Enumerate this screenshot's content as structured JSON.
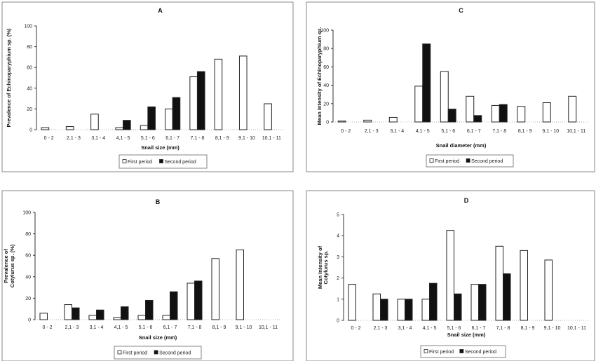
{
  "chart_data": [
    {
      "type": "bar",
      "title": "A",
      "xlabel": "Snail size (mm)",
      "ylabel": [
        "Prevalence of Echinoparyphium sp. (%)"
      ],
      "ylim": [
        0,
        100
      ],
      "yticks": [
        0,
        20,
        40,
        60,
        80,
        100
      ],
      "grid": false,
      "legend": "bottom",
      "categories": [
        "0 - 2",
        "2,1 - 3",
        "3,1 - 4",
        "4,1 - 5",
        "5,1 - 6",
        "6,1 - 7",
        "7,1 - 8",
        "8,1 - 9",
        "9,1 - 10",
        "10,1 - 11"
      ],
      "series": [
        {
          "name": "First period",
          "color": "#ffffff",
          "values": [
            2,
            3,
            15,
            2,
            4,
            20,
            51,
            68,
            71,
            25
          ]
        },
        {
          "name": "Second period",
          "color": "#111111",
          "values": [
            0,
            0,
            0,
            9,
            22,
            31,
            56,
            0,
            0,
            0
          ]
        }
      ]
    },
    {
      "type": "bar",
      "title": "B",
      "xlabel": "Snail size (mm)",
      "ylabel": [
        "Prevalence of",
        "Cotylurus sp. (%)"
      ],
      "ylim": [
        0,
        100
      ],
      "yticks": [
        0,
        20,
        40,
        60,
        80,
        100
      ],
      "grid": false,
      "legend": "bottom",
      "categories": [
        "0 - 2",
        "2,1 - 3",
        "3,1 - 4",
        "4,1 - 5",
        "5,1 - 6",
        "6,1 - 7",
        "7,1 - 8",
        "8,1 - 9",
        "9,1 - 10",
        "10,1 - 11"
      ],
      "series": [
        {
          "name": "First period",
          "color": "#ffffff",
          "values": [
            6,
            14,
            4,
            2,
            4,
            4,
            34,
            57,
            65,
            0
          ]
        },
        {
          "name": "Second period",
          "color": "#111111",
          "values": [
            0,
            11,
            9,
            12,
            18,
            26,
            36,
            0,
            0,
            0
          ]
        }
      ]
    },
    {
      "type": "bar",
      "title": "C",
      "xlabel": "Snail diameter (mm)",
      "ylabel": [
        "Mean Intensity of Echinoparyphium sp."
      ],
      "ylim": [
        0,
        100
      ],
      "yticks": [
        0,
        20,
        40,
        60,
        80,
        100
      ],
      "grid": false,
      "legend": "bottom",
      "categories": [
        "0 - 2",
        "2,1 - 3",
        "3,1 - 4",
        "4,1 - 5",
        "5,1 - 6",
        "6,1 - 7",
        "7,1 - 8",
        "8,1 - 9",
        "9,1 - 10",
        "10,1 - 11"
      ],
      "series": [
        {
          "name": "First period",
          "color": "#ffffff",
          "values": [
            1,
            2,
            5,
            39,
            55,
            28,
            18,
            17,
            21,
            28
          ]
        },
        {
          "name": "Second period",
          "color": "#111111",
          "values": [
            0,
            0,
            0,
            85,
            14,
            7,
            19,
            0,
            0,
            0
          ]
        }
      ]
    },
    {
      "type": "bar",
      "title": "D",
      "xlabel": "Snail size (mm)",
      "ylabel": [
        "Mean Intensity of",
        "Cotylurus sp."
      ],
      "ylim": [
        0,
        5
      ],
      "yticks": [
        0,
        1,
        2,
        3,
        4,
        5
      ],
      "grid": false,
      "legend": "bottom",
      "categories": [
        "0 - 2",
        "2,1 - 3",
        "3,1 - 4",
        "4,1 - 5",
        "5,1 - 6",
        "6,1 - 7",
        "7,1 - 8",
        "8,1 - 9",
        "9,1 - 10",
        "10,1 - 11"
      ],
      "series": [
        {
          "name": "First period",
          "color": "#ffffff",
          "values": [
            1.7,
            1.25,
            1,
            1,
            4.25,
            1.7,
            3.5,
            3.3,
            2.85,
            0
          ]
        },
        {
          "name": "Second period",
          "color": "#111111",
          "values": [
            0,
            1,
            1,
            1.75,
            1.25,
            1.7,
            2.2,
            0,
            0,
            0
          ]
        }
      ]
    }
  ]
}
